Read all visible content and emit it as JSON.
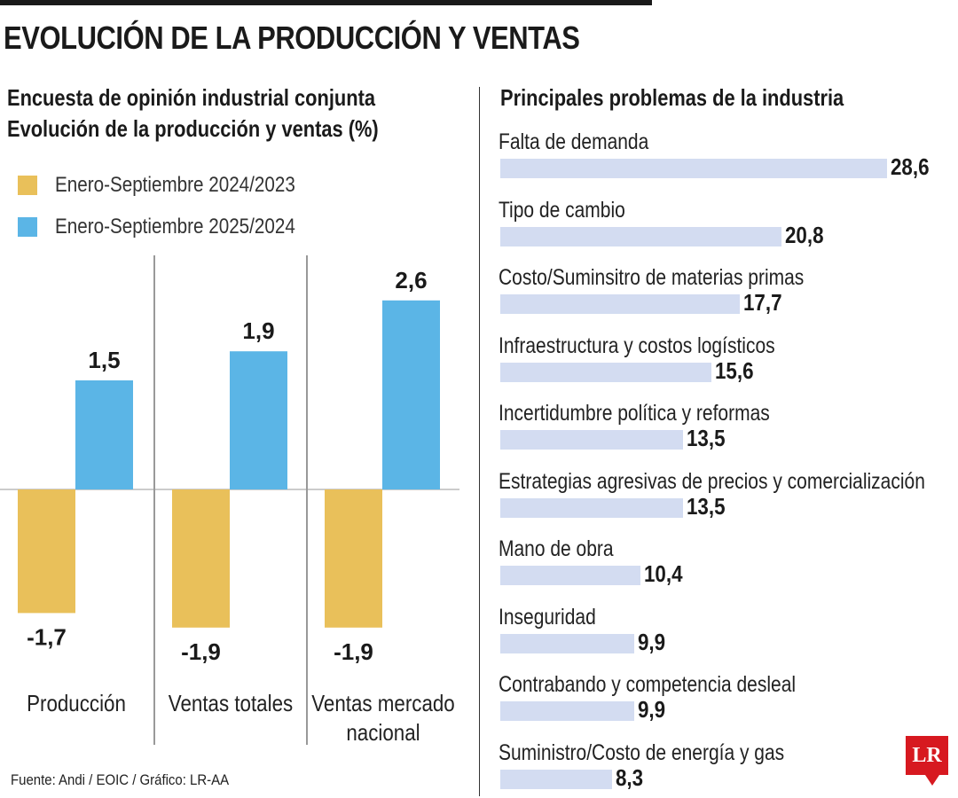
{
  "title": "EVOLUCIÓN DE LA PRODUCCIÓN Y VENTAS",
  "left_subtitle_1": "Encuesta de opinión industrial conjunta",
  "left_subtitle_2": "Evolución de la producción y ventas (%)",
  "right_title": "Principales problemas de la industria",
  "source": "Fuente: Andi / EOIC / Gráfico: LR-AA",
  "logo_text": "LR",
  "colors": {
    "series_2024": "#e9c05a",
    "series_2025": "#5bb5e6",
    "problem_bar": "#d3dcf1",
    "logo": "#d71920"
  },
  "chart_data": [
    {
      "type": "bar",
      "title": "Evolución de la producción y ventas (%)",
      "categories": [
        "Producción",
        "Ventas totales",
        "Ventas mercado nacional"
      ],
      "category_lines": [
        [
          "Producción"
        ],
        [
          "Ventas totales"
        ],
        [
          "Ventas mercado",
          "nacional"
        ]
      ],
      "series": [
        {
          "name": "Enero-Septiembre 2024/2023",
          "values": [
            -1.7,
            -1.9,
            -1.9
          ],
          "labels": [
            "-1,7",
            "-1,9",
            "-1,9"
          ],
          "color": "#e9c05a"
        },
        {
          "name": "Enero-Septiembre 2025/2024",
          "values": [
            1.5,
            1.9,
            2.6
          ],
          "labels": [
            "1,5",
            "1,9",
            "2,6"
          ],
          "color": "#5bb5e6"
        }
      ],
      "ylim": [
        -1.9,
        2.6
      ],
      "legend": "top-left",
      "grid": false
    },
    {
      "type": "bar",
      "orientation": "horizontal",
      "title": "Principales problemas de la industria",
      "categories": [
        "Falta de demanda",
        "Tipo de cambio",
        "Costo/Suminsitro de materias primas",
        "Infraestructura y costos logísticos",
        "Incertidumbre política y reformas",
        "Estrategias agresivas de precios y comercialización",
        "Mano de obra",
        "Inseguridad",
        "Contrabando y competencia desleal",
        "Suministro/Costo de energía y gas"
      ],
      "values": [
        28.6,
        20.8,
        17.7,
        15.6,
        13.5,
        13.5,
        10.4,
        9.9,
        9.9,
        8.3
      ],
      "labels": [
        "28,6",
        "20,8",
        "17,7",
        "15,6",
        "13,5",
        "13,5",
        "10,4",
        "9,9",
        "9,9",
        "8,3"
      ],
      "grid": false
    }
  ]
}
